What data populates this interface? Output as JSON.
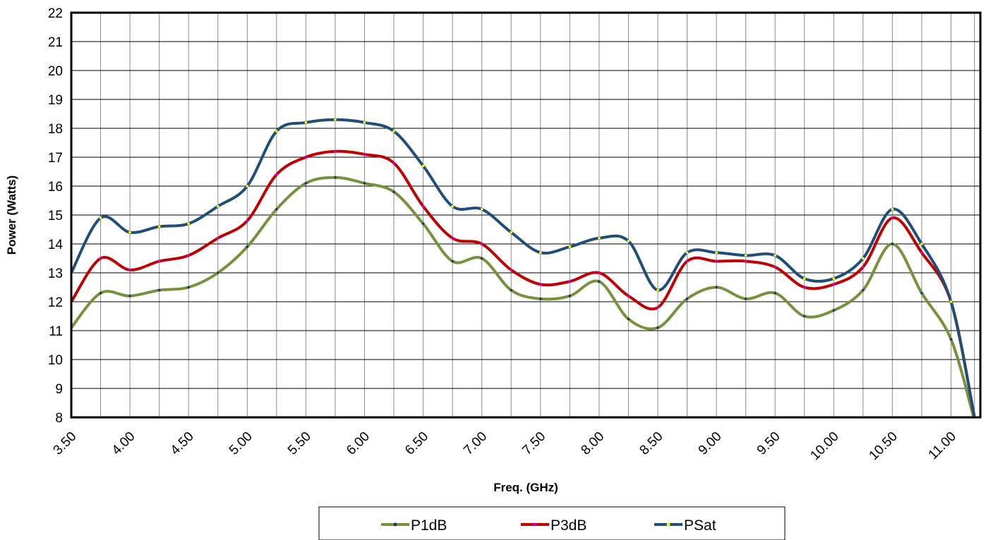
{
  "chart_data": {
    "type": "line",
    "title": "",
    "xlabel": "Freq. (GHz)",
    "ylabel": "Power (Watts)",
    "xlim": [
      3.5,
      11.25
    ],
    "ylim": [
      8,
      22
    ],
    "yticks": [
      "8",
      "9",
      "10",
      "11",
      "12",
      "13",
      "14",
      "15",
      "16",
      "17",
      "18",
      "19",
      "20",
      "21",
      "22"
    ],
    "xtick_labels": [
      "3.50",
      "4.00",
      "4.50",
      "5.00",
      "5.50",
      "6.00",
      "6.50",
      "7.00",
      "7.50",
      "8.00",
      "8.50",
      "9.00",
      "9.50",
      "10.00",
      "10.50",
      "11.00"
    ],
    "xtick_values": [
      3.5,
      4.0,
      4.5,
      5.0,
      5.5,
      6.0,
      6.5,
      7.0,
      7.5,
      8.0,
      8.5,
      9.0,
      9.5,
      10.0,
      10.5,
      11.0
    ],
    "grid": true,
    "legend_position": "bottom",
    "x": [
      3.5,
      3.75,
      4.0,
      4.25,
      4.5,
      4.75,
      5.0,
      5.25,
      5.5,
      5.75,
      6.0,
      6.25,
      6.5,
      6.75,
      7.0,
      7.25,
      7.5,
      7.75,
      8.0,
      8.25,
      8.5,
      8.75,
      9.0,
      9.25,
      9.5,
      9.75,
      10.0,
      10.25,
      10.5,
      10.75,
      11.0,
      11.2
    ],
    "series": [
      {
        "name": "P1dB",
        "color": "#76923c",
        "marker_color": "#1f3864",
        "values": [
          11.1,
          12.3,
          12.2,
          12.4,
          12.5,
          13.0,
          13.9,
          15.2,
          16.1,
          16.3,
          16.1,
          15.8,
          14.7,
          13.4,
          13.5,
          12.4,
          12.1,
          12.2,
          12.7,
          11.4,
          11.1,
          12.1,
          12.5,
          12.1,
          12.3,
          11.5,
          11.7,
          12.4,
          14.0,
          12.3,
          10.7,
          7.9
        ]
      },
      {
        "name": "P3dB",
        "color": "#c00000",
        "marker_color": "#cc00cc",
        "values": [
          12.0,
          13.5,
          13.1,
          13.4,
          13.6,
          14.2,
          14.8,
          16.4,
          17.0,
          17.2,
          17.1,
          16.8,
          15.3,
          14.2,
          14.0,
          13.1,
          12.6,
          12.7,
          13.0,
          12.2,
          11.8,
          13.4,
          13.4,
          13.4,
          13.2,
          12.5,
          12.6,
          13.2,
          14.9,
          13.7,
          12.0,
          8.0
        ]
      },
      {
        "name": "PSat",
        "color": "#1f4e79",
        "marker_color": "#ffff00",
        "values": [
          13.0,
          14.9,
          14.4,
          14.6,
          14.7,
          15.3,
          16.0,
          17.9,
          18.2,
          18.3,
          18.2,
          17.9,
          16.7,
          15.3,
          15.2,
          14.4,
          13.7,
          13.9,
          14.2,
          14.1,
          12.4,
          13.7,
          13.7,
          13.6,
          13.6,
          12.8,
          12.8,
          13.5,
          15.2,
          14.0,
          12.0,
          8.0
        ]
      }
    ]
  }
}
